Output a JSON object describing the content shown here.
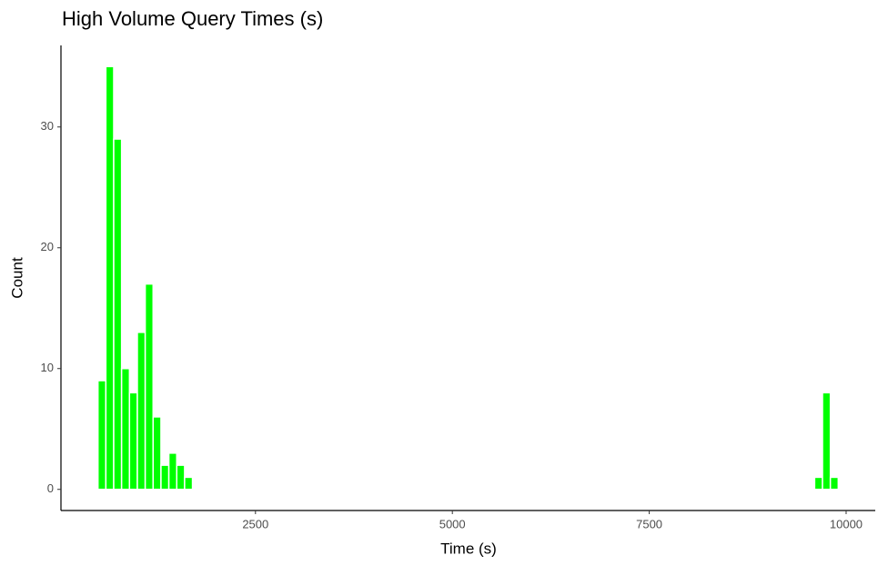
{
  "chart_data": {
    "type": "histogram",
    "title": "High Volume Query Times (s)",
    "x_label": "Time (s)",
    "y_label": "Count",
    "bins": [
      500,
      600,
      700,
      800,
      900,
      1000,
      1100,
      1200,
      1300,
      1400,
      1500,
      1600,
      1700,
      1800,
      1900,
      2000,
      2100,
      2200,
      2300,
      2400,
      2500,
      2600,
      2700,
      2800,
      2900,
      3000,
      3100,
      3200,
      3300,
      3400,
      3500,
      3600,
      3700,
      3800,
      3900,
      4000,
      4100,
      4200,
      4300,
      4400,
      4500,
      4600,
      4700,
      4800,
      4900,
      5000,
      5100,
      5200,
      5300,
      5400,
      5500,
      5600,
      5700,
      5800,
      5900,
      6000,
      6100,
      6200,
      6300,
      6400,
      6500,
      6600,
      6700,
      6800,
      6900,
      7000,
      7100,
      7200,
      7300,
      7400,
      7500,
      7600,
      7700,
      7800,
      7900,
      8000,
      8100,
      8200,
      8300,
      8400,
      8500,
      8600,
      8700,
      8800,
      8900,
      9000,
      9100,
      9200,
      9300,
      9400,
      9500,
      9600,
      9700,
      9800,
      9900
    ],
    "values": [
      9,
      35,
      29,
      10,
      8,
      13,
      17,
      6,
      2,
      3,
      2,
      1,
      0,
      0,
      0,
      0,
      0,
      0,
      0,
      0,
      0,
      0,
      0,
      0,
      0,
      0,
      0,
      0,
      0,
      0,
      0,
      0,
      0,
      0,
      0,
      0,
      0,
      0,
      0,
      0,
      0,
      0,
      0,
      0,
      0,
      0,
      0,
      0,
      0,
      0,
      0,
      0,
      0,
      0,
      0,
      0,
      0,
      0,
      0,
      0,
      0,
      0,
      0,
      0,
      0,
      0,
      0,
      0,
      0,
      0,
      0,
      0,
      0,
      0,
      0,
      0,
      0,
      0,
      0,
      0,
      0,
      0,
      0,
      0,
      0,
      0,
      0,
      0,
      0,
      0,
      0,
      1,
      8,
      1
    ],
    "color": "#00ff00",
    "xlim": [
      30,
      10370
    ],
    "xticks": [
      2500,
      5000,
      7500,
      10000
    ],
    "ylim": [
      -1.75,
      36.75
    ],
    "yticks": [
      0,
      10,
      20,
      30
    ],
    "grid": false
  }
}
